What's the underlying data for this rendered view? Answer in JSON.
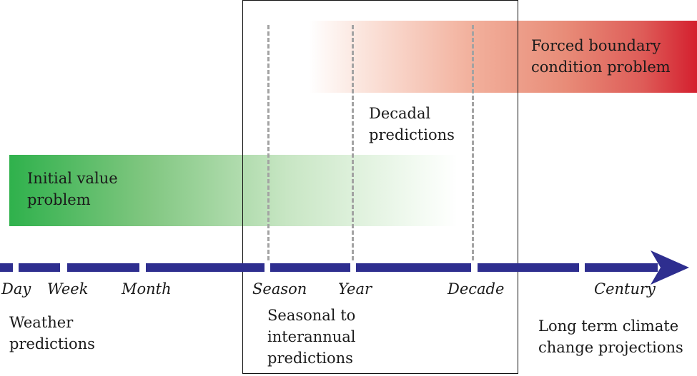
{
  "timeline": {
    "ticks": [
      "Day",
      "Week",
      "Month",
      "Season",
      "Year",
      "Decade",
      "Century"
    ]
  },
  "bands": {
    "initial_value": {
      "line1": "Initial value",
      "line2": "problem",
      "colors": [
        "#2fb14c",
        "#ffffff"
      ]
    },
    "forced_boundary": {
      "line1": "Forced boundary",
      "line2": "condition problem",
      "colors": [
        "#ffffff",
        "#d41f2e"
      ]
    }
  },
  "labels": {
    "decadal": {
      "line1": "Decadal",
      "line2": "predictions"
    },
    "weather": {
      "line1": "Weather",
      "line2": "predictions"
    },
    "seasonal": {
      "line1": "Seasonal to",
      "line2": "interannual",
      "line3": "predictions"
    },
    "long_term": {
      "line1": "Long term climate",
      "line2": "change projections"
    }
  },
  "colors": {
    "axis": "#2e2e8f",
    "dashed": "#a3a3a3",
    "frame": "#111111"
  }
}
